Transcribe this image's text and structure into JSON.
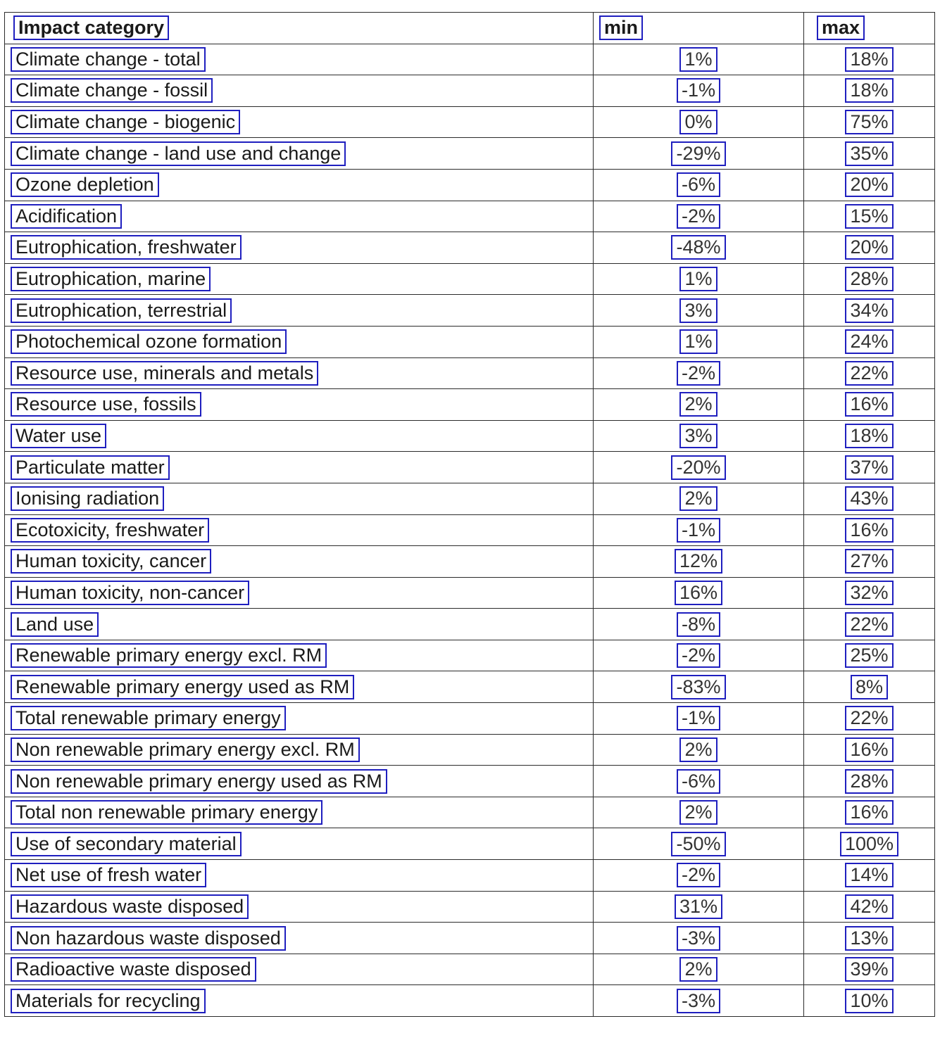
{
  "table": {
    "headers": {
      "category": "Impact category",
      "min": "min",
      "max": "max"
    },
    "rows": [
      {
        "category": "Climate change - total",
        "min": "1%",
        "max": "18%"
      },
      {
        "category": "Climate change - fossil",
        "min": "-1%",
        "max": "18%"
      },
      {
        "category": "Climate change - biogenic",
        "min": "0%",
        "max": "75%"
      },
      {
        "category": "Climate change - land use and change",
        "min": "-29%",
        "max": "35%"
      },
      {
        "category": "Ozone depletion",
        "min": "-6%",
        "max": "20%"
      },
      {
        "category": "Acidification",
        "min": "-2%",
        "max": "15%"
      },
      {
        "category": "Eutrophication, freshwater",
        "min": "-48%",
        "max": "20%"
      },
      {
        "category": "Eutrophication, marine",
        "min": "1%",
        "max": "28%"
      },
      {
        "category": "Eutrophication, terrestrial",
        "min": "3%",
        "max": "34%"
      },
      {
        "category": "Photochemical ozone formation",
        "min": "1%",
        "max": "24%"
      },
      {
        "category": "Resource use, minerals and metals",
        "min": "-2%",
        "max": "22%"
      },
      {
        "category": "Resource use, fossils",
        "min": "2%",
        "max": "16%"
      },
      {
        "category": "Water use",
        "min": "3%",
        "max": "18%"
      },
      {
        "category": "Particulate matter",
        "min": "-20%",
        "max": "37%"
      },
      {
        "category": "Ionising radiation",
        "min": "2%",
        "max": "43%"
      },
      {
        "category": "Ecotoxicity, freshwater",
        "min": "-1%",
        "max": "16%"
      },
      {
        "category": "Human toxicity, cancer",
        "min": "12%",
        "max": "27%"
      },
      {
        "category": "Human toxicity, non-cancer",
        "min": "16%",
        "max": "32%"
      },
      {
        "category": "Land use",
        "min": "-8%",
        "max": "22%"
      },
      {
        "category": "Renewable primary energy excl. RM",
        "min": "-2%",
        "max": "25%"
      },
      {
        "category": "Renewable primary energy used as RM",
        "min": "-83%",
        "max": "8%"
      },
      {
        "category": "Total renewable primary energy",
        "min": "-1%",
        "max": "22%"
      },
      {
        "category": "Non renewable primary energy excl. RM",
        "min": "2%",
        "max": "16%"
      },
      {
        "category": "Non renewable primary energy used as RM",
        "min": "-6%",
        "max": "28%"
      },
      {
        "category": "Total non renewable primary energy",
        "min": "2%",
        "max": "16%"
      },
      {
        "category": "Use of secondary material",
        "min": "-50%",
        "max": "100%"
      },
      {
        "category": "Net use of fresh water",
        "min": "-2%",
        "max": "14%"
      },
      {
        "category": "Hazardous waste disposed",
        "min": "31%",
        "max": "42%"
      },
      {
        "category": "Non hazardous waste disposed",
        "min": "-3%",
        "max": "13%"
      },
      {
        "category": "Radioactive waste disposed",
        "min": "2%",
        "max": "39%"
      },
      {
        "category": "Materials for recycling",
        "min": "-3%",
        "max": "10%"
      }
    ]
  }
}
